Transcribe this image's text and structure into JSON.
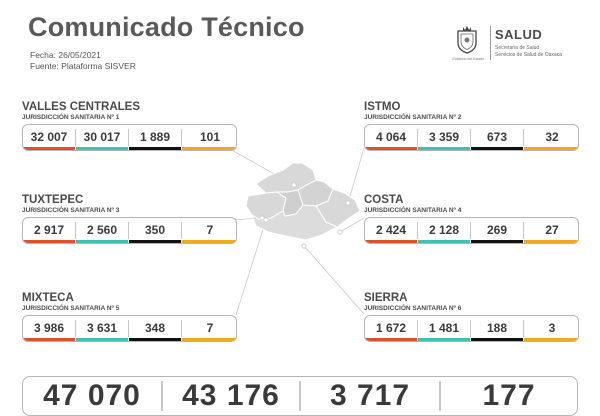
{
  "header": {
    "title": "Comunicado Técnico",
    "fecha": "Fecha: 26/05/2021",
    "fuente": "Fuente: Plataforma SISVER"
  },
  "logo": {
    "name": "SALUD",
    "line1": "Secretaría de Salud",
    "line2": "Servicios de Salud de Oaxaca",
    "seal_caption": "Gobierno del Estado"
  },
  "colors": {
    "confirmados": "#d9522b",
    "recuperados": "#3cc2b4",
    "defunciones": "#111111",
    "activos": "#f2a81d",
    "map_fill": "#d8d8d8",
    "map_stroke": "#ffffff"
  },
  "regions": [
    {
      "name": "VALLES CENTRALES",
      "jurisdiccion": "JURISDICCIÓN SANITARIA Nº 1",
      "values": [
        "32 007",
        "30 017",
        "1 889",
        "101"
      ]
    },
    {
      "name": "TUXTEPEC",
      "jurisdiccion": "JURISDICCIÓN SANITARIA Nº 3",
      "values": [
        "2 917",
        "2 560",
        "350",
        "7"
      ]
    },
    {
      "name": "MIXTECA",
      "jurisdiccion": "JURISDICCIÓN SANITARIA Nº 5",
      "values": [
        "3 986",
        "3 631",
        "348",
        "7"
      ]
    },
    {
      "name": "ISTMO",
      "jurisdiccion": "JURISDICCIÓN SANITARIA Nº 2",
      "values": [
        "4 064",
        "3 359",
        "673",
        "32"
      ]
    },
    {
      "name": "COSTA",
      "jurisdiccion": "JURISDICCIÓN SANITARIA Nº 4",
      "values": [
        "2 424",
        "2 128",
        "269",
        "27"
      ]
    },
    {
      "name": "SIERRA",
      "jurisdiccion": "JURISDICCIÓN SANITARIA Nº 6",
      "values": [
        "1 672",
        "1 481",
        "188",
        "3"
      ]
    }
  ],
  "totals": [
    "47 070",
    "43 176",
    "3 717",
    "177"
  ]
}
